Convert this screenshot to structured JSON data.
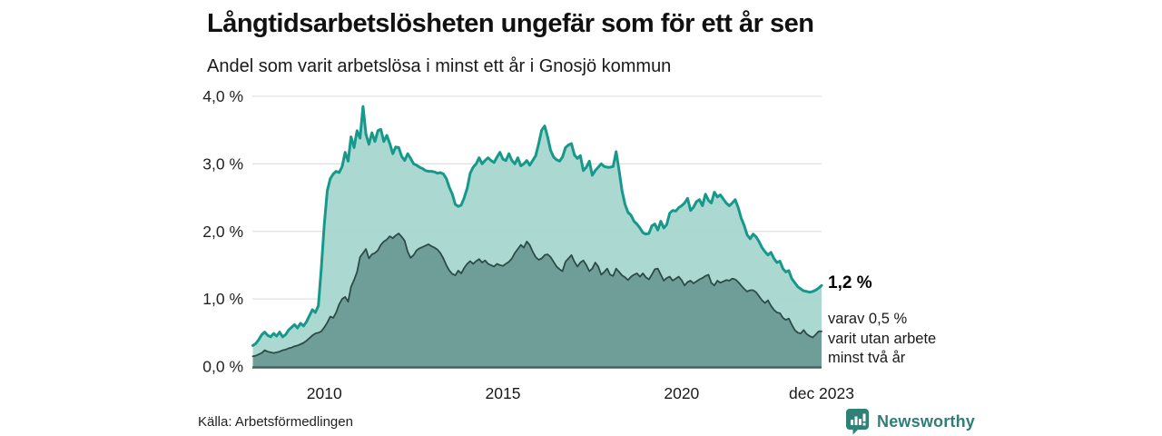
{
  "header": {
    "title": "Långtidsarbetslösheten ungefär som för ett år sen",
    "subtitle": "Andel som varit arbetslösa i minst ett år i Gnosjö kommun"
  },
  "chart_data": {
    "type": "area",
    "title": "Långtidsarbetslösheten ungefär som för ett år sen",
    "subtitle": "Andel som varit arbetslösa i minst ett år i Gnosjö kommun",
    "x_start": "2008-01",
    "x_end": "2023-12",
    "x_interval": "monthly",
    "ylim": [
      0,
      4
    ],
    "grid": true,
    "legend_position": "none",
    "colors": {
      "grid": "#e0e0e0",
      "axis": "#44625e",
      "series1_stroke": "#16998a",
      "series1_fill": "#a7d7cf",
      "series2_stroke": "#2d4b47",
      "series2_fill": "#6f9e99"
    },
    "yticks": [
      {
        "v": 4,
        "label": "4,0 %"
      },
      {
        "v": 3,
        "label": "3,0 %"
      },
      {
        "v": 2,
        "label": "2,0 %"
      },
      {
        "v": 1,
        "label": "1,0 %"
      },
      {
        "v": 0,
        "label": "0,0 %"
      }
    ],
    "xticks": [
      {
        "m": 24,
        "label": "2010"
      },
      {
        "m": 84,
        "label": "2015"
      },
      {
        "m": 144,
        "label": "2020"
      },
      {
        "m": 191,
        "label": "dec 2023"
      }
    ],
    "series": [
      {
        "name": "Andel som varit arbetslösa minst ett år",
        "latest": 1.2,
        "values": [
          0.31,
          0.34,
          0.4,
          0.47,
          0.51,
          0.46,
          0.44,
          0.49,
          0.45,
          0.51,
          0.44,
          0.47,
          0.54,
          0.58,
          0.62,
          0.57,
          0.64,
          0.6,
          0.66,
          0.75,
          0.84,
          0.8,
          0.9,
          1.45,
          2.1,
          2.6,
          2.78,
          2.85,
          2.89,
          2.87,
          2.96,
          3.17,
          3.04,
          3.4,
          3.24,
          3.49,
          3.38,
          3.85,
          3.44,
          3.29,
          3.46,
          3.33,
          3.49,
          3.51,
          3.33,
          3.42,
          3.3,
          3.15,
          3.25,
          3.24,
          3.11,
          3.05,
          3.15,
          3.08,
          3.0,
          2.98,
          2.95,
          2.93,
          2.9,
          2.89,
          2.89,
          2.88,
          2.86,
          2.87,
          2.85,
          2.78,
          2.65,
          2.55,
          2.4,
          2.37,
          2.39,
          2.5,
          2.64,
          2.86,
          2.95,
          3.0,
          3.09,
          3.0,
          3.05,
          3.09,
          3.05,
          3.02,
          3.1,
          3.17,
          3.07,
          3.05,
          3.15,
          3.05,
          3.0,
          3.09,
          2.97,
          3.0,
          3.05,
          2.98,
          3.05,
          3.12,
          3.3,
          3.5,
          3.56,
          3.4,
          3.2,
          3.1,
          3.06,
          3.04,
          3.1,
          3.24,
          3.28,
          3.3,
          3.13,
          3.08,
          3.12,
          2.9,
          2.95,
          3.04,
          2.83,
          2.9,
          2.95,
          3.0,
          2.96,
          2.95,
          2.95,
          2.96,
          3.18,
          2.9,
          2.6,
          2.4,
          2.28,
          2.24,
          2.15,
          2.11,
          2.05,
          1.98,
          1.96,
          1.97,
          2.08,
          2.11,
          2.02,
          2.15,
          2.05,
          2.1,
          2.27,
          2.31,
          2.3,
          2.35,
          2.38,
          2.42,
          2.49,
          2.31,
          2.36,
          2.44,
          2.47,
          2.38,
          2.55,
          2.46,
          2.42,
          2.58,
          2.51,
          2.54,
          2.48,
          2.42,
          2.38,
          2.42,
          2.47,
          2.35,
          2.2,
          2.09,
          1.95,
          1.89,
          1.96,
          1.92,
          1.85,
          1.76,
          1.7,
          1.65,
          1.69,
          1.6,
          1.54,
          1.56,
          1.45,
          1.4,
          1.42,
          1.3,
          1.24,
          1.18,
          1.15,
          1.12,
          1.11,
          1.1,
          1.11,
          1.13,
          1.16,
          1.2
        ]
      },
      {
        "name": "varav utan arbete minst två år",
        "latest": 0.5,
        "values": [
          0.15,
          0.16,
          0.18,
          0.2,
          0.24,
          0.22,
          0.21,
          0.2,
          0.21,
          0.22,
          0.24,
          0.25,
          0.27,
          0.28,
          0.3,
          0.31,
          0.33,
          0.35,
          0.38,
          0.42,
          0.46,
          0.49,
          0.5,
          0.52,
          0.58,
          0.65,
          0.74,
          0.72,
          0.8,
          0.92,
          1.0,
          1.03,
          0.96,
          1.18,
          1.28,
          1.4,
          1.62,
          1.68,
          1.74,
          1.6,
          1.66,
          1.68,
          1.72,
          1.8,
          1.85,
          1.88,
          1.93,
          1.9,
          1.94,
          1.97,
          1.92,
          1.86,
          1.7,
          1.61,
          1.65,
          1.72,
          1.75,
          1.77,
          1.79,
          1.81,
          1.78,
          1.76,
          1.73,
          1.68,
          1.6,
          1.5,
          1.42,
          1.37,
          1.35,
          1.42,
          1.38,
          1.46,
          1.52,
          1.56,
          1.52,
          1.56,
          1.59,
          1.54,
          1.57,
          1.52,
          1.5,
          1.48,
          1.52,
          1.5,
          1.49,
          1.52,
          1.55,
          1.6,
          1.68,
          1.74,
          1.8,
          1.76,
          1.85,
          1.8,
          1.7,
          1.62,
          1.58,
          1.6,
          1.65,
          1.66,
          1.62,
          1.55,
          1.48,
          1.44,
          1.41,
          1.55,
          1.6,
          1.65,
          1.55,
          1.48,
          1.54,
          1.57,
          1.5,
          1.41,
          1.45,
          1.54,
          1.48,
          1.36,
          1.4,
          1.45,
          1.36,
          1.34,
          1.45,
          1.4,
          1.35,
          1.32,
          1.28,
          1.33,
          1.36,
          1.38,
          1.33,
          1.38,
          1.32,
          1.29,
          1.36,
          1.44,
          1.45,
          1.36,
          1.27,
          1.31,
          1.33,
          1.27,
          1.3,
          1.33,
          1.28,
          1.2,
          1.25,
          1.27,
          1.23,
          1.26,
          1.29,
          1.31,
          1.34,
          1.36,
          1.24,
          1.2,
          1.27,
          1.24,
          1.26,
          1.28,
          1.27,
          1.3,
          1.29,
          1.25,
          1.2,
          1.15,
          1.11,
          1.13,
          1.13,
          1.1,
          1.04,
          0.98,
          0.94,
          0.98,
          0.9,
          0.84,
          0.8,
          0.79,
          0.72,
          0.69,
          0.71,
          0.62,
          0.54,
          0.5,
          0.49,
          0.54,
          0.48,
          0.45,
          0.43,
          0.47,
          0.52,
          0.52
        ]
      }
    ]
  },
  "annotations": {
    "latest_value": "1,2 %",
    "secondary": "varav 0,5 %\nvarit utan arbete\nminst två år"
  },
  "source": {
    "text": "Källa: Arbetsförmedlingen"
  },
  "logo": {
    "text": "Newsworthy",
    "icon": "newsworthy-bars-icon",
    "color": "#2f8077"
  }
}
